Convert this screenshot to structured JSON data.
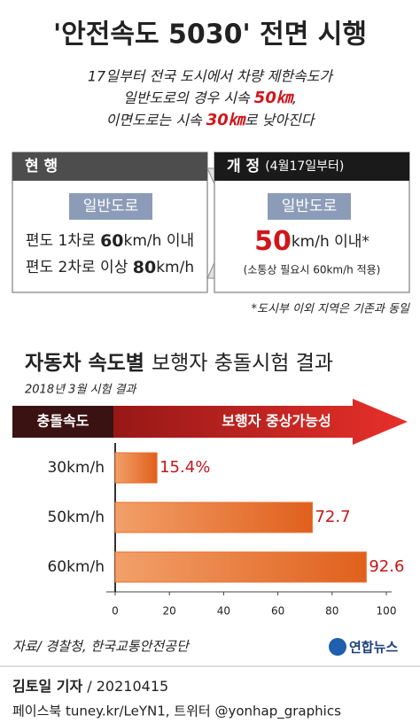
{
  "header": {
    "title": "'안전속도 5030' 전면 시행",
    "intro": {
      "line1": "17일부터 전국 도시에서 차량 제한속도가",
      "line2": [
        "일반도로의 경우 시속 ",
        "50㎞",
        ","
      ],
      "line3": [
        "이면도로는 시속 ",
        "30㎞",
        "로 낮아진다"
      ]
    }
  },
  "current": {
    "heading": "현 행",
    "road": "일반도로",
    "rules": [
      [
        "편도 1차로 ",
        "60",
        "km/h 이내"
      ],
      [
        "편도 2차로 이상 ",
        "80",
        "km/h"
      ]
    ]
  },
  "revised": {
    "heading": "개 정",
    "date": "(4월17일부터)",
    "road": "일반도로",
    "limit": [
      "50",
      "km/h 이내*"
    ],
    "exception": "(소통상 필요시 60km/h 적용)"
  },
  "note": "*도시부 이외 지역은 기존과 동일",
  "chart_data": {
    "type": "bar",
    "orientation": "horizontal",
    "title_bold": "자동차 속도별",
    "title": "보행자 충돌시험 결과",
    "subtitle": "2018년 3월 시험 결과",
    "category_header": "충돌속도",
    "value_header": "보행자 중상가능성",
    "categories": [
      "30km/h",
      "50km/h",
      "60km/h"
    ],
    "values": [
      15.4,
      72.7,
      92.6
    ],
    "value_labels": [
      "15.4%",
      "72.7",
      "92.6"
    ],
    "color": "#e8702e",
    "label_color": "#c4161c",
    "xlim": [
      0,
      100
    ],
    "xticks": [
      0,
      20,
      40,
      60,
      80,
      100
    ]
  },
  "footer": {
    "source": "자료/ 경찰청, 한국교통안전공단",
    "logo": "연합뉴스",
    "reporter": "김토일 기자",
    "date": " / 20210415",
    "sns": "페이스북 tuney.kr/LeYN1, 트위터 @yonhap_graphics"
  }
}
